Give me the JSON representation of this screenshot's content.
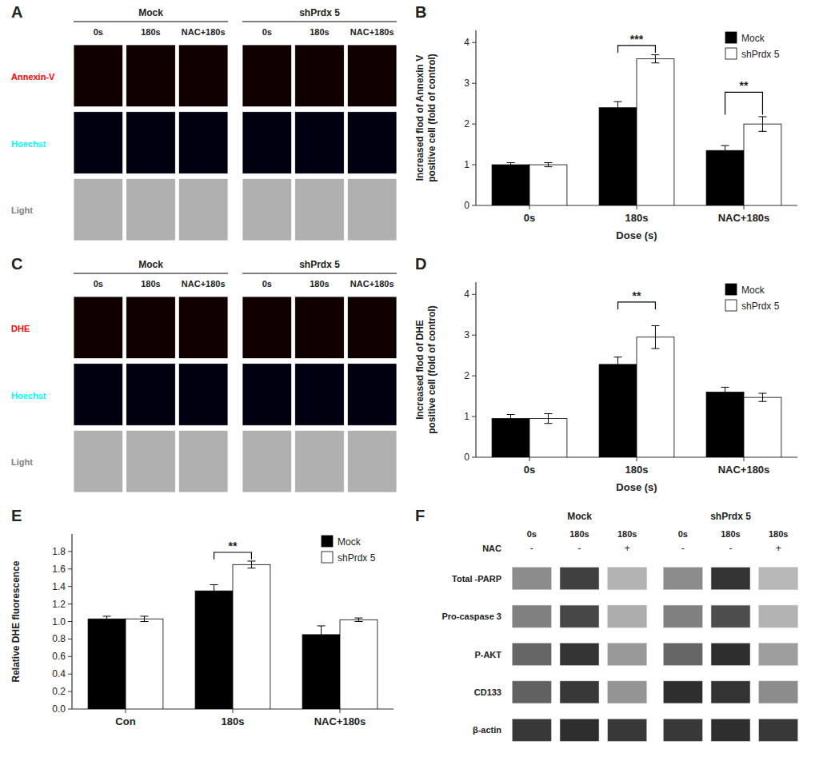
{
  "chart_data": [
    {
      "type": "image_grid",
      "title": "A",
      "groups": [
        "Mock",
        "shPrdx 5"
      ],
      "categories": [
        "0s",
        "180s",
        "NAC+180s",
        "0s",
        "180s",
        "NAC+180s"
      ],
      "rows": [
        {
          "name": "Annexin-V",
          "color": "red",
          "cell_color": "#100000"
        },
        {
          "name": "Hoechst",
          "color": "cyan",
          "cell_color": "#000010"
        },
        {
          "name": "Light",
          "color": "gray",
          "cell_color": "#b0b0b0"
        }
      ]
    },
    {
      "type": "bar",
      "title": "B",
      "categories": [
        "0s",
        "180s",
        "NAC+180s"
      ],
      "xlabel": "Dose (s)",
      "ylabel": "Increased flod of Annexin V\npositive cell (fold of control)",
      "ylim": [
        0,
        4.3
      ],
      "yticks": [
        0,
        1,
        2,
        3,
        4
      ],
      "legend": "upper right",
      "series": [
        {
          "name": "Mock",
          "color": "#000000",
          "values": [
            1.0,
            2.4,
            1.35
          ],
          "errors": [
            0.05,
            0.15,
            0.12
          ]
        },
        {
          "name": "shPrdx 5",
          "color": "#ffffff",
          "values": [
            1.0,
            3.6,
            2.0
          ],
          "errors": [
            0.05,
            0.1,
            0.18
          ]
        }
      ],
      "annotations": [
        {
          "text": "***",
          "x": "180s",
          "y": 3.75,
          "y_end": 3.93
        },
        {
          "text": "**",
          "x": "NAC+180s",
          "y": 2.23,
          "y_end": 2.78
        }
      ]
    },
    {
      "type": "image_grid",
      "title": "C",
      "groups": [
        "Mock",
        "shPrdx 5"
      ],
      "categories": [
        "0s",
        "180s",
        "NAC+180s",
        "0s",
        "180s",
        "NAC+180s"
      ],
      "rows": [
        {
          "name": "DHE",
          "color": "red",
          "cell_color": "#100000"
        },
        {
          "name": "Hoechst",
          "color": "cyan",
          "cell_color": "#000010"
        },
        {
          "name": "Light",
          "color": "gray",
          "cell_color": "#b0b0b0"
        }
      ]
    },
    {
      "type": "bar",
      "title": "D",
      "categories": [
        "0s",
        "180s",
        "NAC+180s"
      ],
      "xlabel": "Dose (s)",
      "ylabel": "Increased flod of DHE\npositive cell (fold of control)",
      "ylim": [
        0,
        4.3
      ],
      "yticks": [
        0,
        1,
        2,
        3,
        4
      ],
      "legend": "upper right",
      "series": [
        {
          "name": "Mock",
          "color": "#000000",
          "values": [
            0.95,
            2.28,
            1.6
          ],
          "errors": [
            0.1,
            0.18,
            0.12
          ]
        },
        {
          "name": "shPrdx 5",
          "color": "#ffffff",
          "values": [
            0.95,
            2.95,
            1.47
          ],
          "errors": [
            0.12,
            0.28,
            0.1
          ]
        }
      ],
      "annotations": [
        {
          "text": "**",
          "x": "180s",
          "y": 3.63,
          "y_end": 3.81
        }
      ]
    },
    {
      "type": "bar",
      "title": "E",
      "categories": [
        "Con",
        "180s",
        "NAC+180s"
      ],
      "ylabel": "Relative DHE fluorescence",
      "ylim": [
        0,
        2.0
      ],
      "yticks": [
        {
          "value": 0,
          "label": "0.0"
        },
        0.2,
        0.4,
        0.6,
        0.8,
        {
          "value": 1.0,
          "label": "1.0"
        },
        1.2,
        1.4,
        1.6,
        1.8
      ],
      "legend": "upper right",
      "series": [
        {
          "name": "Mock",
          "color": "#000000",
          "values": [
            1.03,
            1.35,
            0.85
          ],
          "errors": [
            0.03,
            0.07,
            0.1
          ]
        },
        {
          "name": "shPrdx 5",
          "color": "#ffffff",
          "values": [
            1.03,
            1.65,
            1.02
          ],
          "errors": [
            0.03,
            0.04,
            0.02
          ]
        }
      ],
      "annotations": [
        {
          "text": "**",
          "x": "180s",
          "y": 1.71,
          "y_end": 1.79
        }
      ]
    },
    {
      "type": "blot",
      "title": "F",
      "groups": [
        "Mock",
        "shPrdx 5"
      ],
      "categories": [
        "0s",
        "180s",
        "180s",
        "0s",
        "180s",
        "180s"
      ],
      "nac_label": "NAC",
      "nac": [
        "-",
        "-",
        "+",
        "-",
        "-",
        "+"
      ],
      "rows": [
        {
          "name": "Total -PARP",
          "values": [
            0.55,
            0.25,
            0.7,
            0.55,
            0.2,
            0.72
          ]
        },
        {
          "name": "Pro-caspase 3",
          "values": [
            0.5,
            0.28,
            0.68,
            0.5,
            0.3,
            0.7
          ]
        },
        {
          "name": "P-AKT",
          "values": [
            0.4,
            0.2,
            0.6,
            0.4,
            0.18,
            0.62
          ]
        },
        {
          "name": "CD133",
          "values": [
            0.38,
            0.22,
            0.58,
            0.18,
            0.2,
            0.55
          ]
        },
        {
          "name": "β-actin",
          "values": [
            0.22,
            0.18,
            0.22,
            0.22,
            0.18,
            0.22
          ]
        }
      ]
    }
  ]
}
